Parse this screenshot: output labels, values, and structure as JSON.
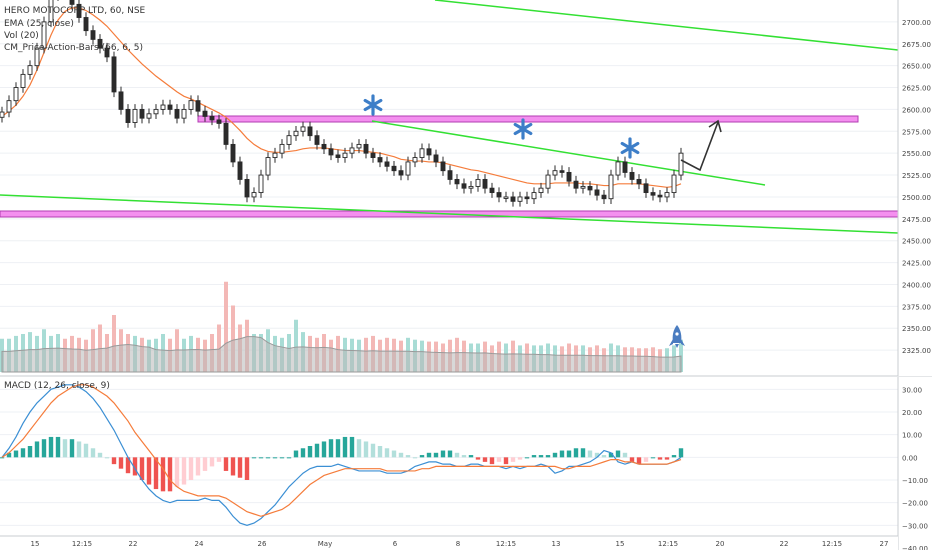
{
  "header": {
    "symbol_line": "HERO MOTOCORP LTD, 60, NSE",
    "ema_label": "EMA (25, close)",
    "vol_label": "Vol (20)",
    "indicator_label": "CM_Price-Action-Bars (66, 6, 5)"
  },
  "macd_panel": {
    "label": "MACD (12, 26, close, 9)",
    "ylim": [
      -40,
      35
    ],
    "ticks": [
      "30.00",
      "20.00",
      "10.00",
      "0.00",
      "−10.00",
      "−20.00",
      "−30.00",
      "−40.00"
    ],
    "tick_values": [
      30,
      20,
      10,
      0,
      -10,
      -20,
      -30,
      -40
    ]
  },
  "x_axis": {
    "labels": [
      "15",
      "12:15",
      "22",
      "24",
      "26",
      "May",
      "6",
      "8",
      "12:15",
      "13",
      "15",
      "12:15",
      "20",
      "22",
      "12:15",
      "27"
    ]
  },
  "chart_data": {
    "type": "candlestick",
    "ylim": [
      2300,
      2725
    ],
    "yticks": [
      "2700.00",
      "2675.00",
      "2650.00",
      "2625.00",
      "2600.00",
      "2575.00",
      "2550.00",
      "2525.00",
      "2500.00",
      "2475.00",
      "2450.00",
      "2425.00",
      "2400.00",
      "2375.00",
      "2350.00",
      "2325.00"
    ],
    "ytick_values": [
      2700,
      2675,
      2650,
      2625,
      2600,
      2575,
      2550,
      2525,
      2500,
      2475,
      2450,
      2425,
      2400,
      2375,
      2350,
      2325
    ],
    "close": [
      2597,
      2610,
      2625,
      2640,
      2650,
      2670,
      2700,
      2730,
      2740,
      2735,
      2720,
      2705,
      2690,
      2680,
      2670,
      2660,
      2620,
      2600,
      2585,
      2600,
      2590,
      2595,
      2600,
      2605,
      2600,
      2590,
      2600,
      2610,
      2598,
      2592,
      2588,
      2584,
      2560,
      2540,
      2520,
      2500,
      2505,
      2525,
      2545,
      2550,
      2560,
      2570,
      2575,
      2580,
      2570,
      2560,
      2555,
      2548,
      2545,
      2550,
      2556,
      2560,
      2550,
      2545,
      2540,
      2535,
      2530,
      2525,
      2540,
      2545,
      2555,
      2548,
      2540,
      2530,
      2520,
      2515,
      2510,
      2512,
      2520,
      2510,
      2505,
      2500,
      2500,
      2495,
      2500,
      2498,
      2505,
      2510,
      2525,
      2530,
      2528,
      2518,
      2510,
      2512,
      2508,
      2502,
      2498,
      2525,
      2540,
      2528,
      2520,
      2515,
      2505,
      2502,
      2500,
      2505,
      2525,
      2550
    ],
    "ema": [
      2592,
      2598,
      2605,
      2615,
      2628,
      2645,
      2665,
      2685,
      2702,
      2712,
      2716,
      2716,
      2713,
      2708,
      2702,
      2695,
      2686,
      2677,
      2668,
      2660,
      2652,
      2645,
      2638,
      2632,
      2626,
      2620,
      2615,
      2612,
      2608,
      2604,
      2600,
      2596,
      2591,
      2584,
      2576,
      2567,
      2560,
      2555,
      2552,
      2551,
      2551,
      2552,
      2553,
      2555,
      2556,
      2556,
      2556,
      2555,
      2554,
      2553,
      2553,
      2553,
      2552,
      2551,
      2550,
      2548,
      2546,
      2543,
      2542,
      2541,
      2541,
      2540,
      2540,
      2539,
      2537,
      2535,
      2533,
      2531,
      2530,
      2528,
      2526,
      2524,
      2522,
      2520,
      2518,
      2516,
      2515,
      2515,
      2515,
      2516,
      2516,
      2516,
      2516,
      2515,
      2515,
      2514,
      2513,
      2513,
      2515,
      2515,
      2515,
      2515,
      2514,
      2513,
      2512,
      2511,
      2512,
      2515
    ],
    "volume": [
      0.35,
      0.35,
      0.38,
      0.4,
      0.42,
      0.38,
      0.45,
      0.38,
      0.4,
      0.35,
      0.38,
      0.36,
      0.34,
      0.45,
      0.5,
      0.4,
      0.6,
      0.45,
      0.4,
      0.38,
      0.36,
      0.34,
      0.35,
      0.4,
      0.35,
      0.45,
      0.35,
      0.38,
      0.36,
      0.34,
      0.4,
      0.5,
      0.95,
      0.7,
      0.5,
      0.55,
      0.4,
      0.4,
      0.45,
      0.38,
      0.36,
      0.4,
      0.55,
      0.42,
      0.38,
      0.36,
      0.4,
      0.34,
      0.38,
      0.36,
      0.35,
      0.34,
      0.36,
      0.38,
      0.34,
      0.36,
      0.35,
      0.33,
      0.36,
      0.34,
      0.33,
      0.32,
      0.32,
      0.3,
      0.34,
      0.36,
      0.33,
      0.3,
      0.3,
      0.32,
      0.28,
      0.32,
      0.3,
      0.33,
      0.28,
      0.3,
      0.28,
      0.28,
      0.3,
      0.28,
      0.27,
      0.3,
      0.28,
      0.28,
      0.26,
      0.28,
      0.25,
      0.3,
      0.28,
      0.26,
      0.26,
      0.25,
      0.25,
      0.26,
      0.24,
      0.25,
      0.28,
      0.34
    ],
    "macd_line": [
      0,
      4,
      9,
      15,
      20,
      24,
      27,
      30,
      31,
      32,
      32,
      31,
      29,
      26,
      22,
      17,
      12,
      6,
      0,
      -5,
      -10,
      -14,
      -17,
      -19,
      -20,
      -19,
      -19,
      -19,
      -19,
      -18,
      -19,
      -19,
      -22,
      -26,
      -29,
      -30,
      -29,
      -27,
      -24,
      -21,
      -17,
      -13,
      -10,
      -7,
      -5,
      -4,
      -4,
      -4,
      -3,
      -4,
      -5,
      -6,
      -6,
      -6,
      -6,
      -7,
      -7,
      -7,
      -6,
      -4,
      -3,
      -2,
      -2,
      -3,
      -3,
      -4,
      -4,
      -3,
      -3,
      -4,
      -4,
      -4,
      -5,
      -4,
      -5,
      -4,
      -4,
      -3,
      -4,
      -7,
      -6,
      -4,
      -4,
      -3,
      -2,
      0,
      3,
      2,
      -2,
      -3,
      -2,
      -3,
      -3,
      -3,
      -3,
      -3,
      -2,
      0
    ],
    "signal_line": [
      0,
      2,
      5,
      8,
      12,
      16,
      20,
      24,
      27,
      29,
      31,
      32,
      32,
      31,
      29,
      27,
      24,
      20,
      16,
      11,
      7,
      3,
      -1,
      -5,
      -10,
      -13,
      -15,
      -16,
      -17,
      -17,
      -17,
      -17,
      -18,
      -20,
      -22,
      -24,
      -25,
      -26,
      -25,
      -24,
      -23,
      -21,
      -18,
      -15,
      -12,
      -10,
      -8,
      -7,
      -6,
      -5,
      -5,
      -5,
      -5,
      -5,
      -5,
      -6,
      -6,
      -6,
      -6,
      -6,
      -5,
      -5,
      -4,
      -4,
      -4,
      -4,
      -4,
      -4,
      -4,
      -4,
      -4,
      -4,
      -4,
      -4,
      -4,
      -4,
      -4,
      -4,
      -4,
      -4,
      -5,
      -5,
      -4,
      -4,
      -4,
      -3,
      -2,
      -1,
      -1,
      -2,
      -2,
      -3,
      -3,
      -3,
      -3,
      -3,
      -2,
      -1
    ],
    "histogram": [
      0,
      2,
      3,
      4,
      5,
      7,
      8,
      9,
      9,
      8,
      8,
      7,
      6,
      4,
      2,
      0,
      -3,
      -5,
      -7,
      -8,
      -10,
      -12,
      -14,
      -15,
      -15,
      -13,
      -12,
      -10,
      -8,
      -6,
      -4,
      -2,
      -6,
      -8,
      -9,
      -10,
      0,
      0,
      0,
      0,
      0,
      0,
      3,
      4,
      5,
      6,
      7,
      8,
      8,
      9,
      9,
      8,
      7,
      6,
      5,
      4,
      3,
      2,
      1,
      0,
      1,
      2,
      2,
      3,
      3,
      2,
      1,
      1,
      -1,
      -2,
      -3,
      -2,
      -3,
      -2,
      -1,
      0,
      1,
      1,
      1,
      2,
      3,
      3,
      4,
      4,
      3,
      2,
      1,
      2,
      3,
      2,
      -2,
      -3,
      -2,
      0,
      -1,
      -1,
      1,
      4
    ]
  },
  "colors": {
    "up": "#26a69a",
    "down": "#ef5350",
    "candle": "#2b2b2b",
    "ema": "#f57c3b",
    "trendline": "#33e033",
    "zone_fill": "#f48fef",
    "zone_stroke": "#b03cb0",
    "macd_line": "#3b8fd4",
    "signal_line": "#f57c3b",
    "volume_area": "#b8b8b8",
    "star": "#3d7ec8",
    "rocket": "#4a7cc0",
    "grid": "#eef0f4",
    "axis_text": "#444444"
  },
  "drawings": {
    "marker_icon": "asterisk-star-icon",
    "rocket_icon": "rocket-icon",
    "arrow_icon": "arrow-icon"
  }
}
